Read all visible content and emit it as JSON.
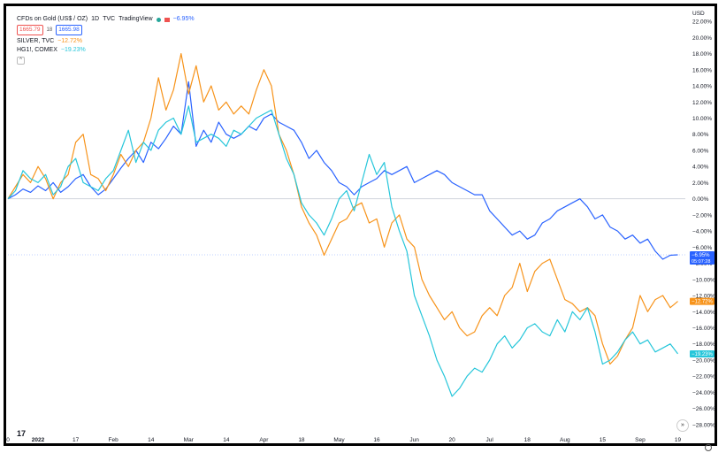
{
  "legend": {
    "main_symbol": "CFDs on Gold (US$ / OZ)",
    "interval": "1D",
    "source": "TVC",
    "platform": "TradingView",
    "main_change": "−6.95%",
    "bid": "1665.79",
    "spread": "18",
    "ask": "1665.98",
    "silver_label": "SILVER, TVC",
    "silver_change": "−12.72%",
    "copper_label": "HG1!, COMEX",
    "copper_change": "−19.23%",
    "collapse_glyph": "^"
  },
  "axis_unit": "USD",
  "tv_logo": "17",
  "goto_glyph": "»",
  "price_tags": {
    "gold": "−6.95%",
    "gold_countdown": "05:07:28",
    "silver": "−12.72%",
    "copper": "−19.23%"
  },
  "colors": {
    "gold": "#2962ff",
    "silver": "#f7931a",
    "copper": "#26c6da",
    "bg": "#ffffff"
  },
  "chart_data": {
    "type": "line",
    "ylim": [
      -29,
      23
    ],
    "y_ticks": [
      "22.00%",
      "20.00%",
      "18.00%",
      "16.00%",
      "14.00%",
      "12.00%",
      "10.00%",
      "8.00%",
      "6.00%",
      "4.00%",
      "2.00%",
      "0.00%",
      "−2.00%",
      "−4.00%",
      "−6.00%",
      "−8.00%",
      "−10.00%",
      "−12.00%",
      "−14.00%",
      "−16.00%",
      "−18.00%",
      "−20.00%",
      "−22.00%",
      "−24.00%",
      "−26.00%",
      "−28.00%"
    ],
    "y_tick_values": [
      22,
      20,
      18,
      16,
      14,
      12,
      10,
      8,
      6,
      4,
      2,
      0,
      -2,
      -4,
      -6,
      -8,
      -10,
      -12,
      -14,
      -16,
      -18,
      -20,
      -22,
      -24,
      -26,
      -28
    ],
    "x_ticks": [
      "0",
      "2022",
      "17",
      "Feb",
      "14",
      "Mar",
      "14",
      "Apr",
      "18",
      "May",
      "16",
      "Jun",
      "20",
      "Jul",
      "18",
      "Aug",
      "15",
      "Sep",
      "19"
    ],
    "x_tick_values": [
      0,
      8,
      18,
      28,
      38,
      48,
      58,
      68,
      78,
      88,
      98,
      108,
      118,
      128,
      138,
      148,
      158,
      168,
      178
    ],
    "x_range": [
      0,
      180
    ],
    "series": [
      {
        "name": "CFDs on Gold (US$ / OZ)",
        "color": "#2962ff",
        "x": [
          0,
          2,
          4,
          6,
          8,
          10,
          12,
          14,
          16,
          18,
          20,
          22,
          24,
          26,
          28,
          30,
          32,
          34,
          36,
          38,
          40,
          42,
          44,
          46,
          48,
          50,
          52,
          54,
          56,
          58,
          60,
          62,
          64,
          66,
          68,
          70,
          72,
          74,
          76,
          78,
          80,
          82,
          84,
          86,
          88,
          90,
          92,
          94,
          96,
          98,
          100,
          102,
          104,
          106,
          108,
          110,
          112,
          114,
          116,
          118,
          120,
          122,
          124,
          126,
          128,
          130,
          132,
          134,
          136,
          138,
          140,
          142,
          144,
          146,
          148,
          150,
          152,
          154,
          156,
          158,
          160,
          162,
          164,
          166,
          168,
          170,
          172,
          174,
          176,
          178
        ],
        "values": [
          0,
          0.5,
          1.2,
          0.8,
          1.6,
          1.0,
          2.0,
          0.8,
          1.5,
          2.5,
          3.0,
          1.5,
          0.5,
          1.2,
          2.5,
          3.8,
          5.0,
          6.0,
          4.5,
          7.0,
          6.2,
          7.5,
          9.0,
          8.0,
          14.5,
          6.5,
          8.5,
          7.0,
          9.5,
          8.0,
          7.5,
          8.0,
          9.0,
          8.5,
          10.0,
          10.5,
          9.5,
          9.0,
          8.5,
          7.0,
          5.0,
          6.0,
          4.5,
          3.5,
          2.0,
          1.5,
          0.5,
          1.5,
          2.0,
          2.5,
          3.5,
          3.0,
          3.5,
          4.0,
          2.0,
          2.5,
          3.0,
          3.5,
          3.0,
          2.0,
          1.5,
          1.0,
          0.5,
          0.5,
          -1.5,
          -2.5,
          -3.5,
          -4.5,
          -4.0,
          -5.0,
          -4.5,
          -3.0,
          -2.5,
          -1.5,
          -1.0,
          -0.5,
          0.0,
          -1.0,
          -2.5,
          -2.0,
          -3.5,
          -4.0,
          -5.0,
          -4.5,
          -5.5,
          -5.0,
          -6.5,
          -7.5,
          -7.0,
          -6.95
        ]
      },
      {
        "name": "SILVER, TVC",
        "color": "#f7931a",
        "x": [
          0,
          2,
          4,
          6,
          8,
          10,
          12,
          14,
          16,
          18,
          20,
          22,
          24,
          26,
          28,
          30,
          32,
          34,
          36,
          38,
          40,
          42,
          44,
          46,
          48,
          50,
          52,
          54,
          56,
          58,
          60,
          62,
          64,
          66,
          68,
          70,
          72,
          74,
          76,
          78,
          80,
          82,
          84,
          86,
          88,
          90,
          92,
          94,
          96,
          98,
          100,
          102,
          104,
          106,
          108,
          110,
          112,
          114,
          116,
          118,
          120,
          122,
          124,
          126,
          128,
          130,
          132,
          134,
          136,
          138,
          140,
          142,
          144,
          146,
          148,
          150,
          152,
          154,
          156,
          158,
          160,
          162,
          164,
          166,
          168,
          170,
          172,
          174,
          176,
          178
        ],
        "values": [
          0,
          1.5,
          3.0,
          2.0,
          4.0,
          2.5,
          0.0,
          2.0,
          3.0,
          7.0,
          8.0,
          3.0,
          2.5,
          1.0,
          3.0,
          5.5,
          4.0,
          6.0,
          7.0,
          10.0,
          15.0,
          11.0,
          13.5,
          18.0,
          13.0,
          16.5,
          12.0,
          14.0,
          11.0,
          12.0,
          10.5,
          11.5,
          10.5,
          13.5,
          16.0,
          14.0,
          8.0,
          6.0,
          3.0,
          -1.0,
          -3.0,
          -4.5,
          -7.0,
          -5.0,
          -3.0,
          -2.5,
          -1.0,
          -0.5,
          -3.0,
          -2.5,
          -6.0,
          -3.0,
          -2.0,
          -5.0,
          -6.0,
          -10.0,
          -12.0,
          -13.5,
          -15.0,
          -14.0,
          -16.0,
          -17.0,
          -16.5,
          -14.5,
          -13.5,
          -14.5,
          -12.0,
          -11.0,
          -8.0,
          -11.5,
          -9.0,
          -8.0,
          -7.5,
          -10.0,
          -12.5,
          -13.0,
          -14.0,
          -13.5,
          -14.5,
          -18.0,
          -20.5,
          -19.5,
          -17.5,
          -16.0,
          -12.0,
          -14.0,
          -12.5,
          -12.0,
          -13.5,
          -12.72
        ]
      },
      {
        "name": "HG1!, COMEX",
        "color": "#26c6da",
        "x": [
          0,
          2,
          4,
          6,
          8,
          10,
          12,
          14,
          16,
          18,
          20,
          22,
          24,
          26,
          28,
          30,
          32,
          34,
          36,
          38,
          40,
          42,
          44,
          46,
          48,
          50,
          52,
          54,
          56,
          58,
          60,
          62,
          64,
          66,
          68,
          70,
          72,
          74,
          76,
          78,
          80,
          82,
          84,
          86,
          88,
          90,
          92,
          94,
          96,
          98,
          100,
          102,
          104,
          106,
          108,
          110,
          112,
          114,
          116,
          118,
          120,
          122,
          124,
          126,
          128,
          130,
          132,
          134,
          136,
          138,
          140,
          142,
          144,
          146,
          148,
          150,
          152,
          154,
          156,
          158,
          160,
          162,
          164,
          166,
          168,
          170,
          172,
          174,
          176,
          178
        ],
        "values": [
          0,
          1.0,
          3.5,
          2.5,
          2.0,
          3.0,
          0.5,
          1.5,
          4.0,
          5.0,
          2.0,
          1.5,
          1.0,
          2.5,
          3.5,
          6.0,
          8.5,
          4.5,
          7.0,
          6.0,
          8.5,
          9.5,
          10.0,
          8.0,
          11.5,
          7.0,
          7.5,
          8.0,
          7.5,
          6.5,
          8.5,
          8.0,
          9.0,
          10.0,
          10.5,
          11.0,
          8.0,
          5.0,
          3.0,
          -0.5,
          -2.0,
          -3.0,
          -4.5,
          -2.5,
          0.0,
          1.0,
          -1.5,
          2.0,
          5.5,
          3.0,
          4.5,
          -1.0,
          -4.0,
          -6.5,
          -12.0,
          -14.5,
          -17.0,
          -20.0,
          -22.0,
          -24.5,
          -23.5,
          -22.0,
          -21.0,
          -21.5,
          -20.0,
          -18.0,
          -17.0,
          -18.5,
          -17.5,
          -16.0,
          -15.5,
          -16.5,
          -17.0,
          -15.0,
          -16.5,
          -14.0,
          -15.0,
          -13.5,
          -16.5,
          -20.5,
          -20.0,
          -19.0,
          -17.5,
          -16.5,
          -18.0,
          -17.5,
          -19.0,
          -18.5,
          -18.0,
          -19.23
        ]
      }
    ]
  }
}
